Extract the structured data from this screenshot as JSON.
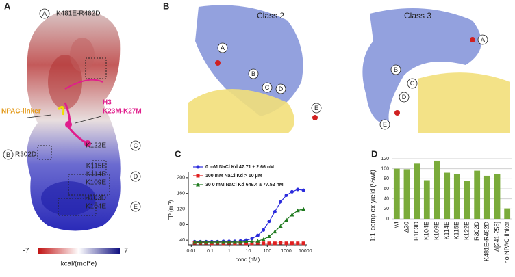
{
  "panels": {
    "A": {
      "panel_label": "A",
      "annotations": [
        {
          "marker": "A",
          "label": [
            "K481E-R482D"
          ]
        },
        {
          "marker": "B",
          "label": [
            "R302D"
          ]
        },
        {
          "marker": "C",
          "label": [
            "K122E"
          ]
        },
        {
          "marker": "D",
          "label": [
            "K115E",
            "K114E",
            "K109E"
          ]
        },
        {
          "marker": "E",
          "label": [
            "H103D",
            "K104E"
          ]
        }
      ],
      "linker_label": "NPAC-linker",
      "h3_label": [
        "H3",
        "K23M-K27M"
      ],
      "colorbar": {
        "min_label": "-7",
        "max_label": "7",
        "unit": "kcal/(mol*e)"
      }
    },
    "B": {
      "panel_label": "B",
      "class2": "Class 2",
      "class3": "Class 3",
      "markers": [
        "A",
        "B",
        "C",
        "D",
        "E"
      ]
    }
  },
  "chart_data": [
    {
      "type": "scatter",
      "panel_label": "C",
      "x_label": "conc (nM)",
      "y_label": "FP (mP)",
      "log_x": true,
      "x": [
        0.015,
        0.03,
        0.06,
        0.12,
        0.24,
        0.49,
        0.98,
        1.95,
        3.9,
        7.8,
        15.6,
        31.3,
        62.5,
        125,
        250,
        500,
        1000,
        2000,
        4000,
        8000
      ],
      "series": [
        {
          "name": "0 mM NaCl Kd 47.71 ± 2.66 nM",
          "color": "#2b2bdc",
          "marker": "circle",
          "values": [
            36,
            36,
            36,
            36,
            36,
            37,
            37,
            37,
            38,
            40,
            44,
            52,
            66,
            88,
            113,
            138,
            155,
            164,
            170,
            168
          ]
        },
        {
          "name": "100 mM NaCl Kd > 10 μM",
          "color": "#e02020",
          "marker": "square",
          "values": [
            33,
            33,
            33,
            32,
            33,
            32,
            33,
            32,
            33,
            32,
            32,
            33,
            32,
            32,
            32,
            33,
            32,
            32,
            32,
            32
          ]
        },
        {
          "name": "30 0 mM NaCl Kd 649.4 ± 77.52 nM",
          "color": "#1f7a1f",
          "marker": "triangle",
          "values": [
            35,
            35,
            35,
            35,
            35,
            35,
            35,
            35,
            35,
            36,
            36,
            38,
            42,
            50,
            62,
            76,
            92,
            105,
            116,
            120
          ]
        }
      ],
      "xlim": [
        0.007,
        12000
      ],
      "xticks": [
        0.01,
        0.1,
        1,
        10,
        100,
        1000,
        10000
      ],
      "ylim": [
        28,
        205
      ],
      "yticks": [
        40,
        80,
        120,
        160,
        200
      ]
    },
    {
      "type": "bar",
      "panel_label": "D",
      "y_label": "1:1 complex yield (%wt)",
      "categories": [
        "wt",
        "Δ30",
        "H103D",
        "K104E",
        "K109E",
        "K114E",
        "K115E",
        "K122E",
        "R302D",
        "K481E-R482D",
        "Δ[241-258]",
        "no NPAC-linker"
      ],
      "values": [
        100,
        99,
        110,
        77,
        116,
        92,
        89,
        76,
        96,
        86,
        89,
        21
      ],
      "color": "#7aab3a",
      "ylim": [
        0,
        120
      ],
      "yticks": [
        0,
        20,
        40,
        60,
        80,
        100,
        120
      ],
      "grid": true
    }
  ]
}
